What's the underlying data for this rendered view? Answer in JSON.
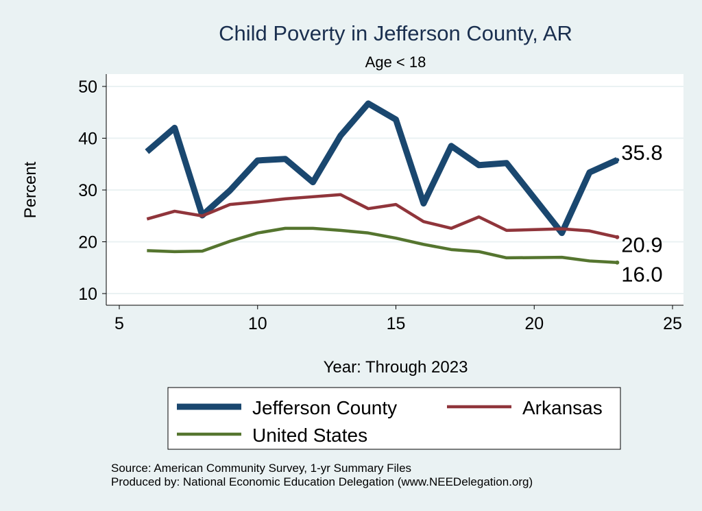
{
  "chart_data": {
    "type": "line",
    "title": "Child Poverty in Jefferson County, AR",
    "subtitle": "Age < 18",
    "xlabel": "Year: Through 2023",
    "ylabel": "Percent",
    "xlim": [
      5,
      25
    ],
    "ylim": [
      10,
      50
    ],
    "xticks": [
      5,
      10,
      15,
      20,
      25
    ],
    "yticks": [
      10,
      20,
      30,
      40,
      50
    ],
    "grid": true,
    "legend_position": "bottom",
    "series": [
      {
        "name": "Jefferson County",
        "color": "#1a476f",
        "width": 9,
        "x": [
          6,
          7,
          8,
          9,
          10,
          11,
          12,
          13,
          14,
          15,
          16,
          17,
          18,
          19,
          21,
          22,
          23
        ],
        "values": [
          37.4,
          42.0,
          25.1,
          29.9,
          35.7,
          36.0,
          31.5,
          40.5,
          46.7,
          43.6,
          27.4,
          38.5,
          34.8,
          35.2,
          21.7,
          33.4,
          35.8
        ],
        "end_label": "35.8"
      },
      {
        "name": "Arkansas",
        "color": "#90353b",
        "width": 4.5,
        "x": [
          6,
          7,
          8,
          9,
          10,
          11,
          12,
          13,
          14,
          15,
          16,
          17,
          18,
          19,
          21,
          22,
          23
        ],
        "values": [
          24.4,
          25.9,
          25.0,
          27.2,
          27.7,
          28.3,
          28.7,
          29.1,
          26.4,
          27.2,
          23.9,
          22.6,
          24.8,
          22.2,
          22.5,
          22.1,
          20.9
        ],
        "end_label": "20.9"
      },
      {
        "name": "United States",
        "color": "#55752f",
        "width": 4.5,
        "x": [
          6,
          7,
          8,
          9,
          10,
          11,
          12,
          13,
          14,
          15,
          16,
          17,
          18,
          19,
          21,
          22,
          23
        ],
        "values": [
          18.3,
          18.1,
          18.2,
          20.1,
          21.7,
          22.6,
          22.6,
          22.2,
          21.7,
          20.7,
          19.5,
          18.5,
          18.1,
          16.9,
          17.0,
          16.3,
          16.0
        ],
        "end_label": "16.0"
      }
    ],
    "notes": [
      "Source: American Community Survey, 1-yr Summary Files",
      "Produced by: National Economic Education Delegation (www.NEEDelegation.org)"
    ]
  }
}
